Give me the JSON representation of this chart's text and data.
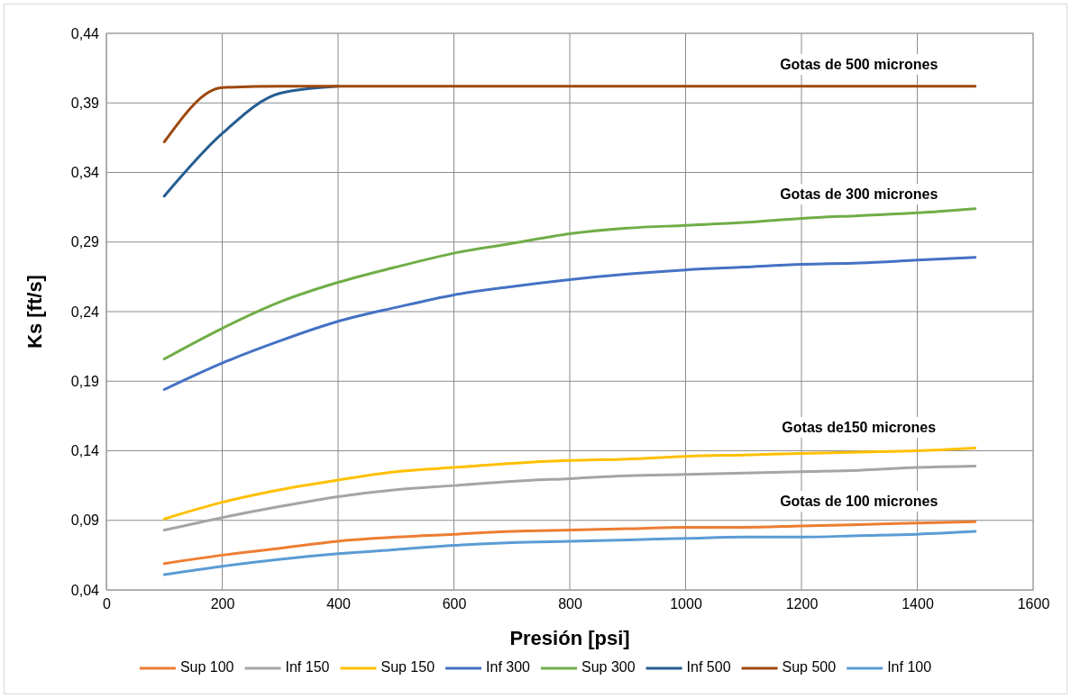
{
  "chart_data": {
    "type": "line",
    "xlabel": "Presión [psi]",
    "ylabel": "Ks [ft/s]",
    "x": [
      100,
      200,
      300,
      400,
      500,
      600,
      700,
      800,
      900,
      1000,
      1100,
      1200,
      1300,
      1400,
      1500
    ],
    "xlim": [
      0,
      1600
    ],
    "xticks": [
      0,
      200,
      400,
      600,
      800,
      1000,
      1200,
      1400,
      1600
    ],
    "ylim": [
      0.04,
      0.44
    ],
    "yticks": [
      {
        "value": 0.04,
        "label": "0,04"
      },
      {
        "value": 0.09,
        "label": "0,09"
      },
      {
        "value": 0.14,
        "label": "0,14"
      },
      {
        "value": 0.19,
        "label": "0,19"
      },
      {
        "value": 0.24,
        "label": "0,24"
      },
      {
        "value": 0.29,
        "label": "0,29"
      },
      {
        "value": 0.34,
        "label": "0,34"
      },
      {
        "value": 0.39,
        "label": "0,39"
      },
      {
        "value": 0.44,
        "label": "0,44"
      }
    ],
    "grid": true,
    "legend": "bottom",
    "marker": "none",
    "line_style": "solid",
    "series": [
      {
        "name": "Sup 100",
        "color": "#ed7d31",
        "values": [
          0.059,
          0.065,
          0.07,
          0.075,
          0.078,
          0.08,
          0.082,
          0.083,
          0.084,
          0.085,
          0.085,
          0.086,
          0.087,
          0.088,
          0.089
        ]
      },
      {
        "name": "Inf 150",
        "color": "#a5a5a5",
        "values": [
          0.083,
          0.092,
          0.1,
          0.107,
          0.112,
          0.115,
          0.118,
          0.12,
          0.122,
          0.123,
          0.124,
          0.125,
          0.126,
          0.128,
          0.129
        ]
      },
      {
        "name": "Sup 150",
        "color": "#ffc000",
        "values": [
          0.091,
          0.103,
          0.112,
          0.119,
          0.125,
          0.128,
          0.131,
          0.133,
          0.134,
          0.136,
          0.137,
          0.138,
          0.139,
          0.14,
          0.142
        ]
      },
      {
        "name": "Inf 300",
        "color": "#4472c4",
        "values": [
          0.184,
          0.203,
          0.219,
          0.233,
          0.243,
          0.252,
          0.258,
          0.263,
          0.267,
          0.27,
          0.272,
          0.274,
          0.275,
          0.277,
          0.279
        ]
      },
      {
        "name": "Sup 300",
        "color": "#70ad47",
        "values": [
          0.206,
          0.228,
          0.247,
          0.261,
          0.272,
          0.282,
          0.289,
          0.296,
          0.3,
          0.302,
          0.304,
          0.307,
          0.309,
          0.311,
          0.314
        ]
      },
      {
        "name": "Inf 500",
        "color": "#255e91",
        "values": [
          0.323,
          0.368,
          0.397,
          0.402,
          null,
          null,
          null,
          null,
          null,
          null,
          null,
          null,
          null,
          null,
          null
        ]
      },
      {
        "name": "Sup 500",
        "color": "#9e480e",
        "values": [
          0.362,
          0.401,
          0.402,
          0.402,
          0.402,
          0.402,
          0.402,
          0.402,
          0.402,
          0.402,
          0.402,
          0.402,
          0.402,
          0.402,
          0.402
        ]
      },
      {
        "name": "Inf 100",
        "color": "#5b9bd5",
        "values": [
          0.051,
          0.057,
          0.062,
          0.066,
          0.069,
          0.072,
          0.074,
          0.075,
          0.076,
          0.077,
          0.078,
          0.078,
          0.079,
          0.08,
          0.082
        ]
      }
    ],
    "annotations": [
      "Gotas de 500 micrones",
      "Gotas de 300 micrones",
      "Gotas de150 micrones",
      "Gotas de 100 micrones"
    ]
  }
}
